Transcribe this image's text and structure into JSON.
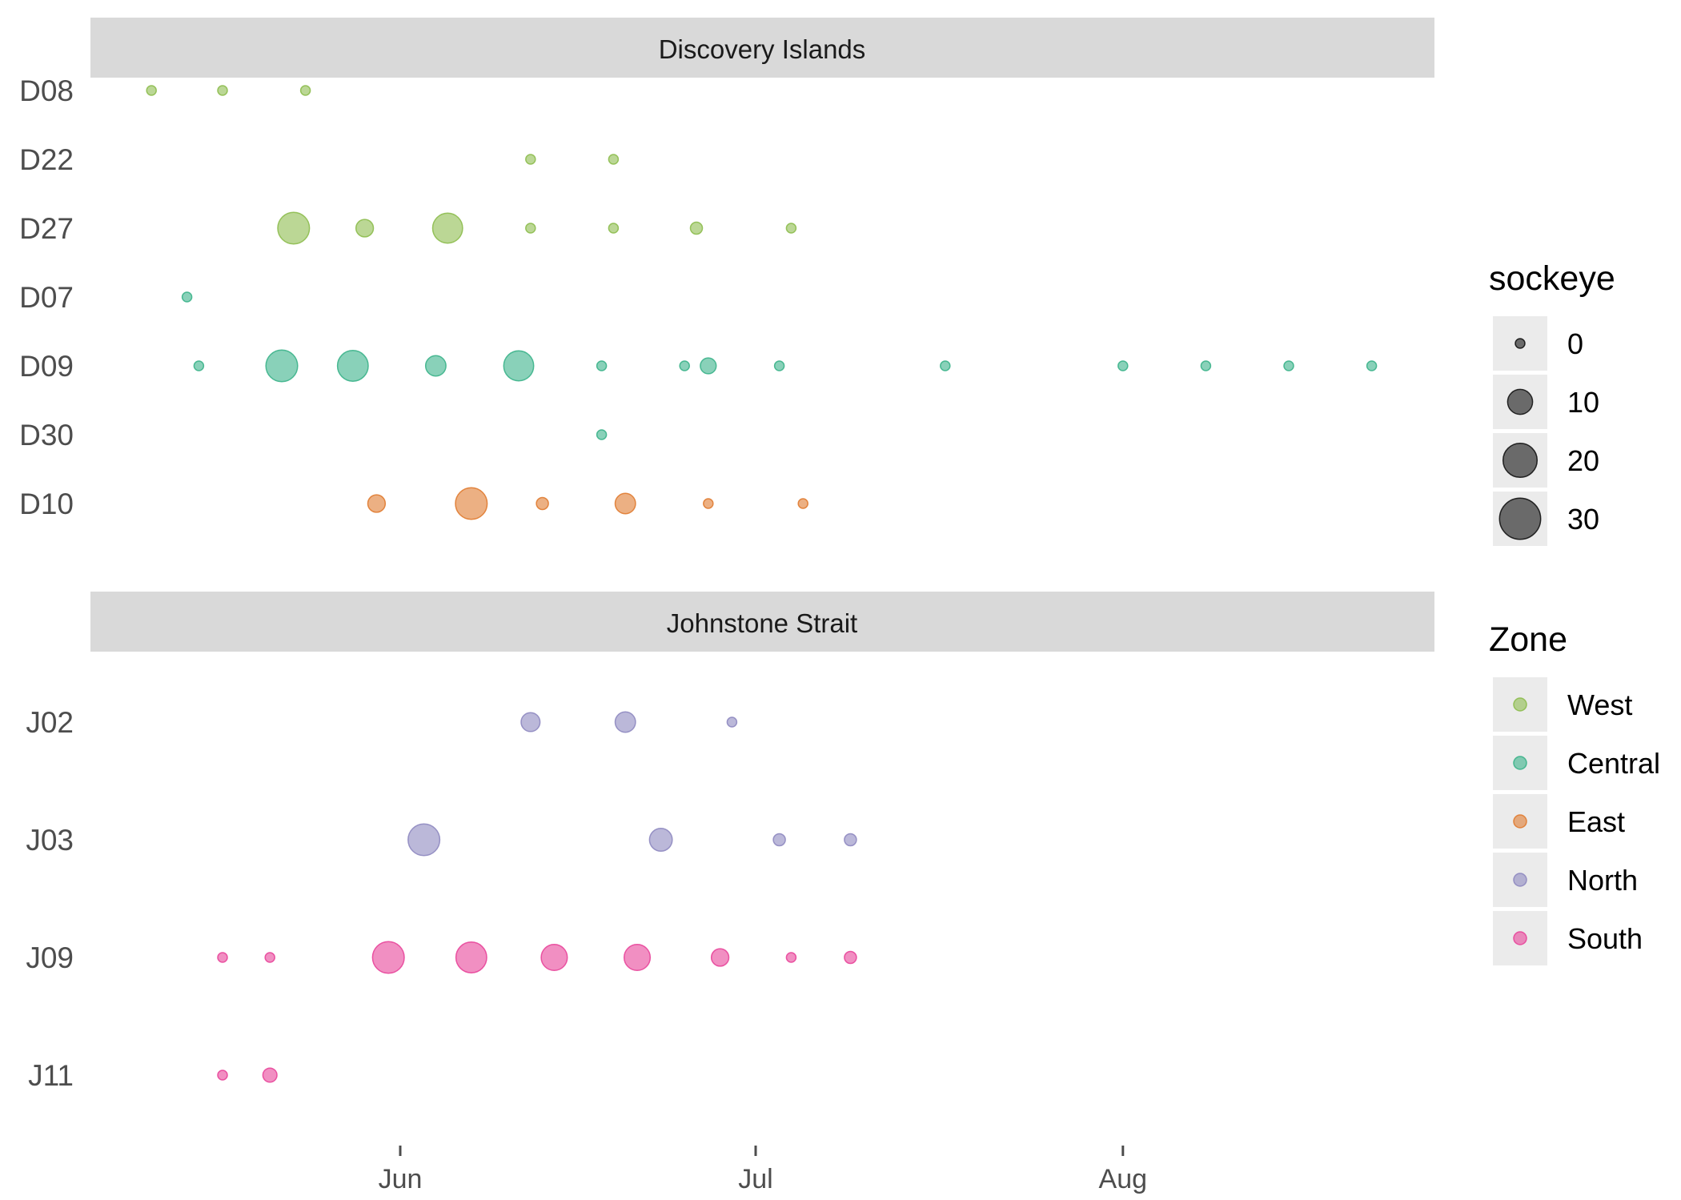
{
  "chart_data": {
    "type": "scatter",
    "encoding": "x = date, y = site, point size = sockeye count, color = Zone",
    "x_ticks": [
      {
        "label": "Jun",
        "date": "2015-06-01"
      },
      {
        "label": "Jul",
        "date": "2015-07-01"
      },
      {
        "label": "Aug",
        "date": "2015-08-01"
      }
    ],
    "x_range": [
      "2015-05-06",
      "2015-08-28"
    ],
    "colors": {
      "West": "#8dbd4e",
      "Central": "#3bb38a",
      "East": "#e07b30",
      "North": "#8e88c0",
      "South": "#e8459a"
    },
    "size_legend": {
      "title": "sockeye",
      "breaks": [
        0,
        10,
        20,
        30
      ]
    },
    "color_legend": {
      "title": "Zone",
      "entries": [
        "West",
        "Central",
        "East",
        "North",
        "South"
      ]
    },
    "panels": [
      {
        "title": "Discovery Islands",
        "sites": [
          {
            "name": "D08",
            "zone": "West",
            "points": [
              {
                "date": "2015-05-11",
                "value": 0
              },
              {
                "date": "2015-05-17",
                "value": 0
              },
              {
                "date": "2015-05-24",
                "value": 0
              }
            ]
          },
          {
            "name": "D22",
            "zone": "West",
            "points": [
              {
                "date": "2015-06-12",
                "value": 0
              },
              {
                "date": "2015-06-19",
                "value": 0
              }
            ]
          },
          {
            "name": "D27",
            "zone": "West",
            "points": [
              {
                "date": "2015-05-23",
                "value": 17
              },
              {
                "date": "2015-05-29",
                "value": 4
              },
              {
                "date": "2015-06-05",
                "value": 15
              },
              {
                "date": "2015-06-12",
                "value": 0
              },
              {
                "date": "2015-06-19",
                "value": 0
              },
              {
                "date": "2015-06-26",
                "value": 1
              },
              {
                "date": "2015-07-04",
                "value": 0
              }
            ]
          },
          {
            "name": "D07",
            "zone": "Central",
            "points": [
              {
                "date": "2015-05-14",
                "value": 0
              }
            ]
          },
          {
            "name": "D09",
            "zone": "Central",
            "points": [
              {
                "date": "2015-05-15",
                "value": 0
              },
              {
                "date": "2015-05-22",
                "value": 17
              },
              {
                "date": "2015-05-28",
                "value": 16
              },
              {
                "date": "2015-06-04",
                "value": 6
              },
              {
                "date": "2015-06-11",
                "value": 15
              },
              {
                "date": "2015-06-18",
                "value": 0
              },
              {
                "date": "2015-06-25",
                "value": 0
              },
              {
                "date": "2015-06-27",
                "value": 3
              },
              {
                "date": "2015-07-03",
                "value": 0
              },
              {
                "date": "2015-07-17",
                "value": 0
              },
              {
                "date": "2015-08-01",
                "value": 0
              },
              {
                "date": "2015-08-08",
                "value": 0
              },
              {
                "date": "2015-08-15",
                "value": 0
              },
              {
                "date": "2015-08-22",
                "value": 0
              }
            ]
          },
          {
            "name": "D30",
            "zone": "Central",
            "points": [
              {
                "date": "2015-06-18",
                "value": 0
              }
            ]
          },
          {
            "name": "D10",
            "zone": "East",
            "points": [
              {
                "date": "2015-05-30",
                "value": 4
              },
              {
                "date": "2015-06-07",
                "value": 17
              },
              {
                "date": "2015-06-13",
                "value": 1
              },
              {
                "date": "2015-06-20",
                "value": 6
              },
              {
                "date": "2015-06-27",
                "value": 0
              },
              {
                "date": "2015-07-05",
                "value": 0
              }
            ]
          }
        ]
      },
      {
        "title": "Johnstone Strait",
        "sites": [
          {
            "name": "J02",
            "zone": "North",
            "points": [
              {
                "date": "2015-06-12",
                "value": 5
              },
              {
                "date": "2015-06-20",
                "value": 6
              },
              {
                "date": "2015-06-29",
                "value": 0
              }
            ]
          },
          {
            "name": "J03",
            "zone": "North",
            "points": [
              {
                "date": "2015-06-03",
                "value": 17
              },
              {
                "date": "2015-06-23",
                "value": 8
              },
              {
                "date": "2015-07-03",
                "value": 1
              },
              {
                "date": "2015-07-09",
                "value": 1
              }
            ]
          },
          {
            "name": "J09",
            "zone": "South",
            "points": [
              {
                "date": "2015-05-17",
                "value": 0
              },
              {
                "date": "2015-05-21",
                "value": 0
              },
              {
                "date": "2015-05-31",
                "value": 17
              },
              {
                "date": "2015-06-07",
                "value": 16
              },
              {
                "date": "2015-06-14",
                "value": 11
              },
              {
                "date": "2015-06-21",
                "value": 11
              },
              {
                "date": "2015-06-28",
                "value": 4
              },
              {
                "date": "2015-07-04",
                "value": 0
              },
              {
                "date": "2015-07-09",
                "value": 1
              }
            ]
          },
          {
            "name": "J11",
            "zone": "South",
            "points": [
              {
                "date": "2015-05-17",
                "value": 0
              },
              {
                "date": "2015-05-21",
                "value": 2
              }
            ]
          }
        ]
      }
    ]
  }
}
